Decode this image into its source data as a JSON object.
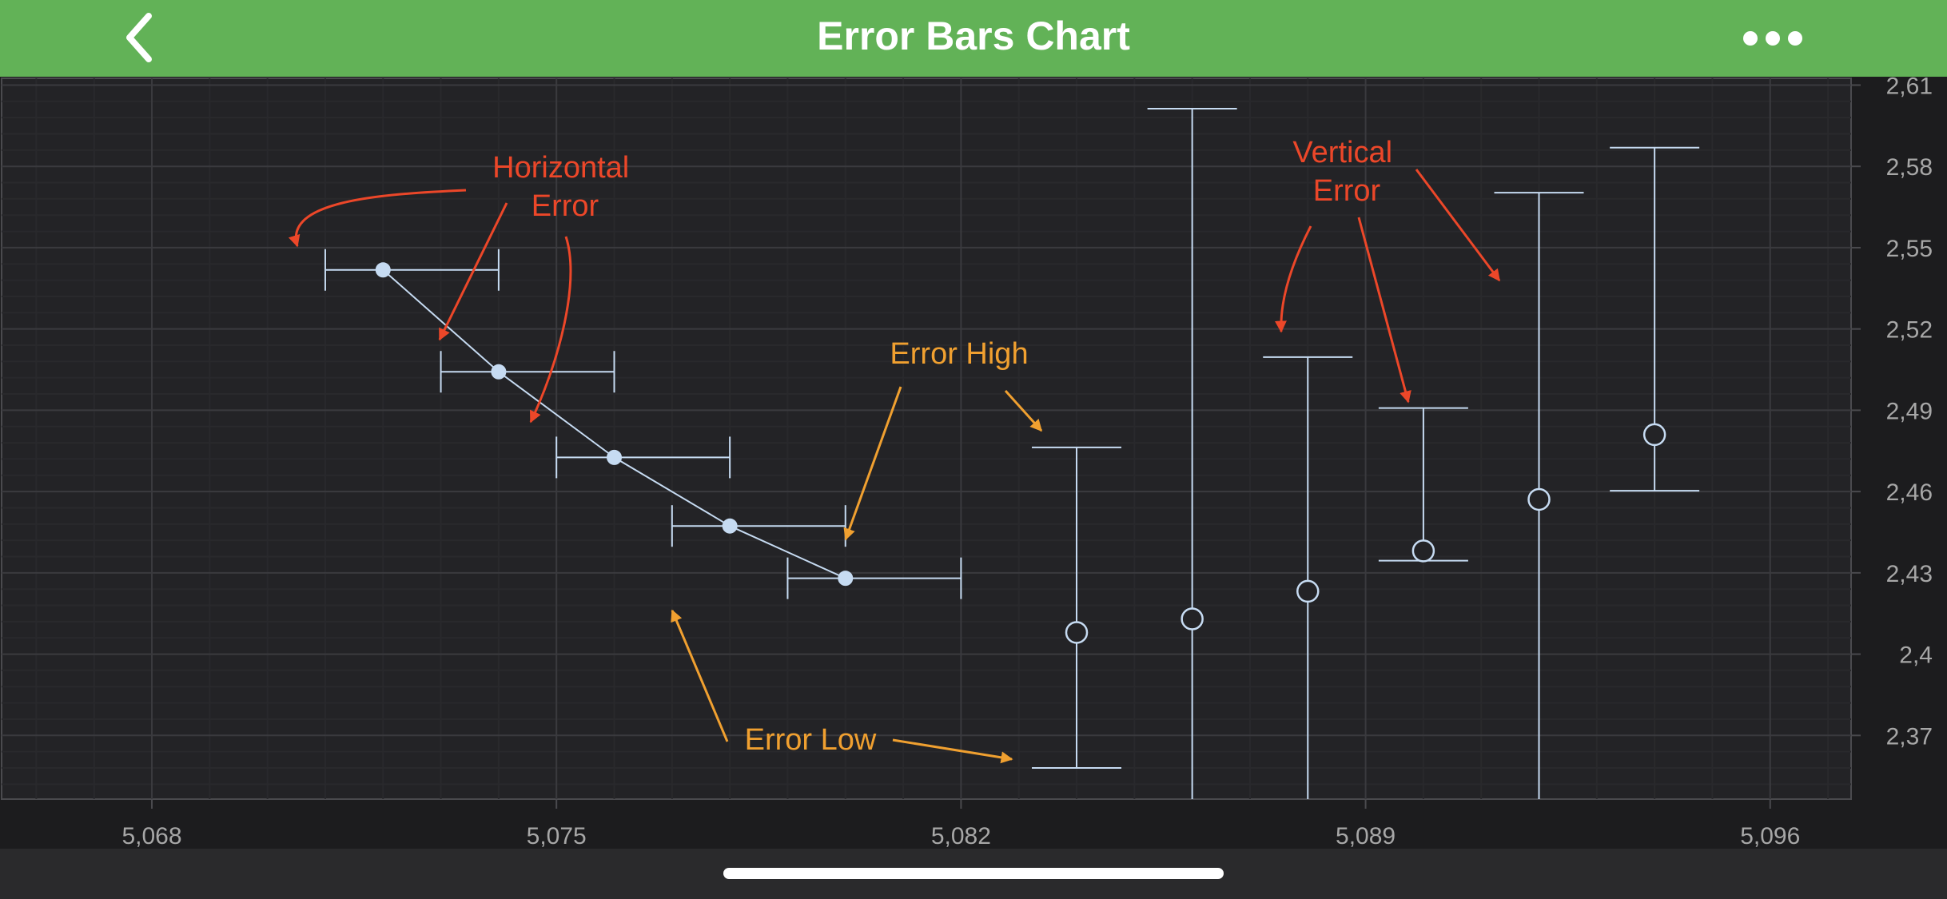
{
  "nav": {
    "title": "Error Bars Chart",
    "back_icon": "chevron-left-icon",
    "more_icon": "ellipsis-icon",
    "color": "#62b257"
  },
  "chart_data": {
    "type": "scatter",
    "xlim": [
      5065.4,
      5097.4
    ],
    "ylim": [
      2.3465,
      2.6125
    ],
    "x_ticks": [
      "5,068",
      "5,075",
      "5,082",
      "5,089",
      "5,096"
    ],
    "y_ticks": [
      "2,61",
      "2,58",
      "2,55",
      "2,52",
      "2,49",
      "2,46",
      "2,43",
      "2,4",
      "2,37"
    ],
    "y_axis_position": "right",
    "grid": true,
    "series": [
      {
        "error_direction": "horizontal",
        "marker": "filled-circle",
        "connected": true,
        "points": [
          {
            "x": 5072.0,
            "y": 2.5418,
            "x_low": 5071.0,
            "x_high": 5074.0
          },
          {
            "x": 5074.0,
            "y": 2.5042,
            "x_low": 5073.0,
            "x_high": 5076.0
          },
          {
            "x": 5076.0,
            "y": 2.4726,
            "x_low": 5075.0,
            "x_high": 5078.0
          },
          {
            "x": 5078.0,
            "y": 2.4473,
            "x_low": 5077.0,
            "x_high": 5080.0
          },
          {
            "x": 5080.0,
            "y": 2.428,
            "x_low": 5079.0,
            "x_high": 5082.0
          }
        ]
      },
      {
        "error_direction": "vertical",
        "marker": "hollow-circle",
        "connected": false,
        "points": [
          {
            "x": 5084.0,
            "y": 2.408,
            "y_low": 2.358,
            "y_high": 2.4763
          },
          {
            "x": 5086.0,
            "y": 2.413,
            "y_low": 2.3465,
            "y_high": 2.6013
          },
          {
            "x": 5088.0,
            "y": 2.4232,
            "y_low": 2.3465,
            "y_high": 2.5096
          },
          {
            "x": 5090.0,
            "y": 2.4381,
            "y_low": 2.4345,
            "y_high": 2.4908
          },
          {
            "x": 5092.0,
            "y": 2.4571,
            "y_low": 2.3465,
            "y_high": 2.5703
          },
          {
            "x": 5094.0,
            "y": 2.481,
            "y_low": 2.4603,
            "y_high": 2.5869
          }
        ]
      }
    ],
    "annotations": [
      {
        "text": "Horizontal\nError",
        "color": "#ec4729"
      },
      {
        "text": "Vertical\nError",
        "color": "#ec4729"
      },
      {
        "text": "Error High",
        "color": "#f0a030"
      },
      {
        "text": "Error Low",
        "color": "#f0a030"
      }
    ],
    "colors": {
      "background": "#1c1c1e",
      "plot_background": "#232326",
      "grid_major": "#3a3a3e",
      "grid_minor": "#29292c",
      "series": "#c6dbf2",
      "axis_text": "#a7a7a7"
    }
  }
}
